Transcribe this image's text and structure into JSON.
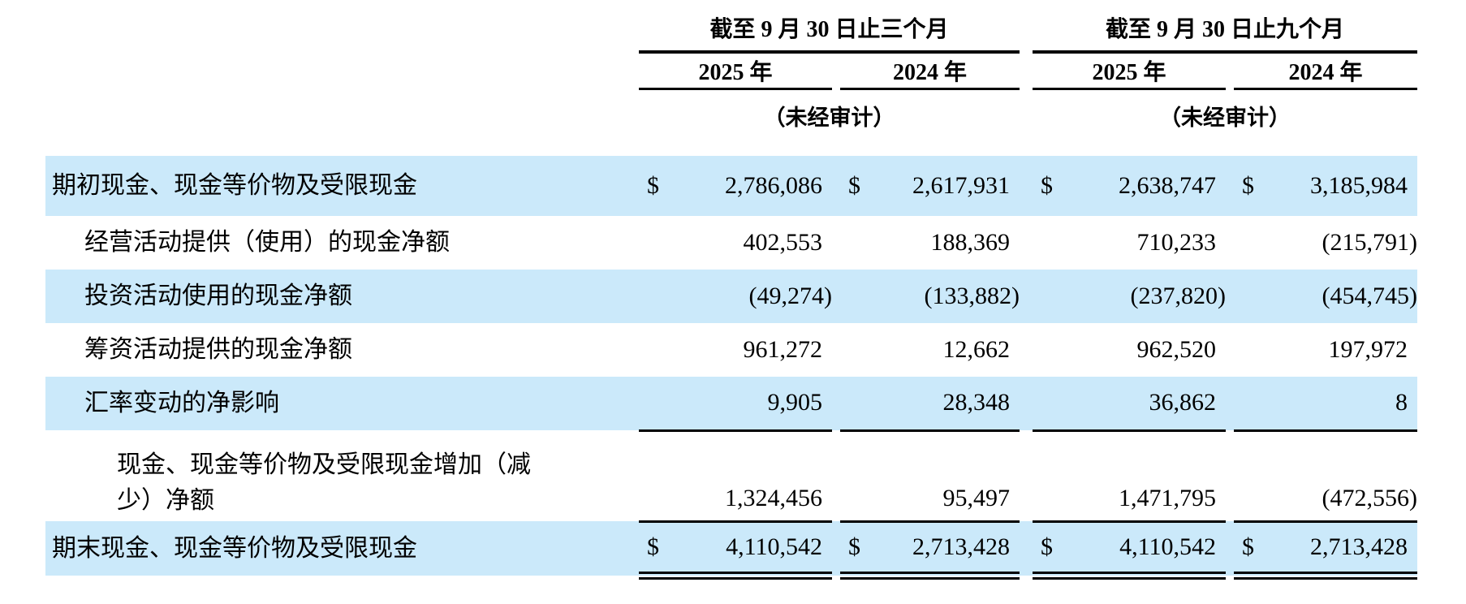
{
  "table": {
    "currency_symbol": "$",
    "colors": {
      "highlight": "#cbe9fa",
      "text": "#000000",
      "rule": "#000000"
    },
    "header": {
      "group_3m": "截至 9 月 30 日止三个月",
      "group_9m": "截至 9 月 30 日止九个月",
      "year_2025": "2025 年",
      "year_2024": "2024 年",
      "unaudited": "（未经审计）"
    },
    "rows": [
      {
        "label": "期初现金、现金等价物及受限现金",
        "indent": 0,
        "highlight": true,
        "dollar": true,
        "values": [
          "2,786,086",
          "2,617,931",
          "2,638,747",
          "3,185,984"
        ]
      },
      {
        "label": "经营活动提供（使用）的现金净额",
        "indent": 1,
        "highlight": false,
        "dollar": false,
        "values": [
          "402,553",
          "188,369",
          "710,233",
          "(215,791)"
        ]
      },
      {
        "label": "投资活动使用的现金净额",
        "indent": 1,
        "highlight": true,
        "dollar": false,
        "values": [
          "(49,274)",
          "(133,882)",
          "(237,820)",
          "(454,745)"
        ]
      },
      {
        "label": "筹资活动提供的现金净额",
        "indent": 1,
        "highlight": false,
        "dollar": false,
        "values": [
          "961,272",
          "12,662",
          "962,520",
          "197,972"
        ]
      },
      {
        "label": "汇率变动的净影响",
        "indent": 1,
        "highlight": true,
        "dollar": false,
        "rule_bottom": true,
        "values": [
          "9,905",
          "28,348",
          "36,862",
          "8"
        ]
      },
      {
        "label": "现金、现金等价物及受限现金增加（减少）净额",
        "indent": 2,
        "highlight": false,
        "dollar": false,
        "values": [
          "1,324,456",
          "95,497",
          "1,471,795",
          "(472,556)"
        ]
      },
      {
        "label": "期末现金、现金等价物及受限现金",
        "indent": 0,
        "highlight": true,
        "dollar": true,
        "rule_top": true,
        "rule_double": true,
        "values": [
          "4,110,542",
          "2,713,428",
          "4,110,542",
          "2,713,428"
        ]
      }
    ]
  }
}
